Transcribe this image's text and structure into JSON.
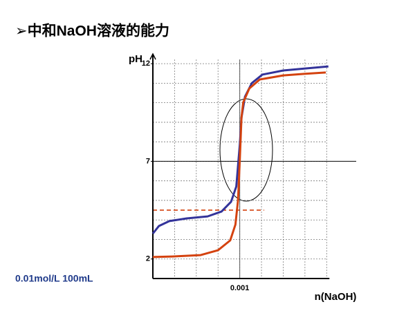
{
  "chart_data": {
    "type": "line",
    "title": "➢中和NaOH溶液的能力",
    "y_label": "pH",
    "x_label": "n(NaOH)",
    "annotation": "0.01mol/L  100mL",
    "series": [
      {
        "color": "#33339a",
        "x": [
          0,
          7e-05,
          0.00019,
          0.00039,
          0.00063,
          0.00079,
          0.0009,
          0.00096,
          0.00098,
          0.001,
          0.00102,
          0.00106,
          0.00114,
          0.00126,
          0.0015,
          0.00174,
          0.00202
        ],
        "values": [
          3.3,
          3.69,
          3.94,
          4.08,
          4.18,
          4.43,
          4.93,
          5.71,
          6.77,
          7.83,
          9.24,
          10.31,
          11.01,
          11.44,
          11.65,
          11.75,
          11.86
        ]
      },
      {
        "color": "#d4420f",
        "x": [
          0,
          0.00023,
          0.00055,
          0.00075,
          0.00089,
          0.00095,
          0.00098,
          0.001,
          0.00102,
          0.00104,
          0.00111,
          0.00123,
          0.0015,
          0.00174,
          0.00199
        ],
        "values": [
          2.1,
          2.13,
          2.2,
          2.45,
          2.95,
          3.76,
          5.0,
          7.02,
          9.24,
          10.02,
          10.73,
          11.19,
          11.4,
          11.48,
          11.55
        ]
      }
    ],
    "xlim": [
      0,
      0.00234
    ],
    "ylim": [
      1,
      12.5
    ],
    "xticks": [
      0.001
    ],
    "yticks": [
      2,
      7,
      12
    ],
    "xgrid": [
      0.00025,
      0.0005,
      0.00075,
      0.001,
      0.00125,
      0.0015,
      0.00175,
      0.002
    ],
    "ygrid": [
      2,
      3,
      4,
      5,
      6,
      7,
      8,
      9,
      10,
      11,
      12
    ],
    "reference_lines": [
      {
        "value": 7,
        "color": "#000000",
        "style": "solid",
        "x_end": 0.00234
      },
      {
        "value": 4.5,
        "color": "#d4420f",
        "style": "dashed",
        "x_end": 0.00128
      }
    ]
  }
}
